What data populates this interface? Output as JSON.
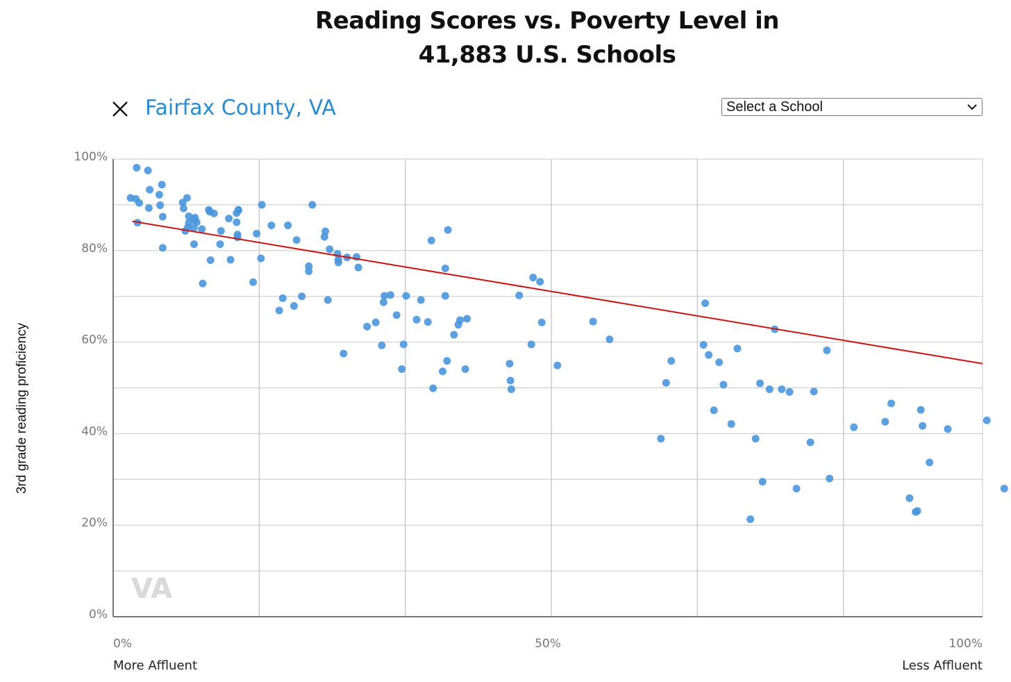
{
  "title": {
    "line1": "Reading Scores vs. Poverty Level in",
    "line2": "41,883 U.S. Schools"
  },
  "header": {
    "close_icon": "close-icon",
    "region_label": "Fairfax County, VA",
    "school_select": {
      "selected": "Select a School",
      "icon": "chevron-down-icon"
    }
  },
  "colors": {
    "points": "#4a96dc",
    "trend": "#cc1111",
    "region": "#2a8bd1",
    "grid": "#c8c8c8"
  },
  "chart_data": {
    "type": "scatter",
    "title": "Reading Scores vs. Poverty Level in 41,883 U.S. Schools",
    "xlabel": "",
    "ylabel": "3rd grade reading proficiency",
    "xlim": [
      0,
      100
    ],
    "ylim": [
      0,
      100
    ],
    "x_tick_labels": [
      {
        "value": 0,
        "label": "0%"
      },
      {
        "value": 50,
        "label": "50%"
      },
      {
        "value": 100,
        "label": "100%"
      }
    ],
    "y_tick_labels": [
      {
        "value": 0,
        "label": "0%"
      },
      {
        "value": 20,
        "label": "20%"
      },
      {
        "value": 40,
        "label": "40%"
      },
      {
        "value": 60,
        "label": "60%"
      },
      {
        "value": 80,
        "label": "80%"
      },
      {
        "value": 100,
        "label": "100%"
      }
    ],
    "x_end_labels": {
      "left": "More Affluent",
      "right": "Less Affluent"
    },
    "watermark": "VA",
    "grid": true,
    "trend_line": {
      "x": [
        2.2,
        100
      ],
      "y": [
        86.4,
        55.3
      ]
    },
    "points": [
      [
        2.7,
        98.1
      ],
      [
        4,
        97.5
      ],
      [
        2,
        91.5
      ],
      [
        2.6,
        91.3
      ],
      [
        3,
        90.4
      ],
      [
        4.2,
        93.3
      ],
      [
        4.1,
        89.3
      ],
      [
        5.3,
        92.2
      ],
      [
        5.6,
        94.4
      ],
      [
        5.4,
        89.9
      ],
      [
        5.7,
        87.4
      ],
      [
        2.8,
        86.1
      ],
      [
        5.7,
        80.6
      ],
      [
        8,
        90.5
      ],
      [
        8.1,
        89.2
      ],
      [
        8.5,
        91.5
      ],
      [
        8.7,
        87.5
      ],
      [
        8.3,
        84.3
      ],
      [
        8.6,
        85.1
      ],
      [
        8.7,
        86.1
      ],
      [
        9.3,
        86.7
      ],
      [
        9.4,
        87.2
      ],
      [
        9.6,
        86.2
      ],
      [
        9.3,
        85
      ],
      [
        10.2,
        84.7
      ],
      [
        9.3,
        81.4
      ],
      [
        11,
        88.9
      ],
      [
        11.1,
        88.5
      ],
      [
        11.6,
        88.1
      ],
      [
        11.2,
        77.9
      ],
      [
        10.3,
        72.8
      ],
      [
        12.4,
        84.3
      ],
      [
        12.3,
        81.4
      ],
      [
        13.3,
        87
      ],
      [
        13.5,
        78
      ],
      [
        14.2,
        88.2
      ],
      [
        14.4,
        88.8
      ],
      [
        14.4,
        88.9
      ],
      [
        14.2,
        86.2
      ],
      [
        14.3,
        83.5
      ],
      [
        14.3,
        82.9
      ],
      [
        16.1,
        73.1
      ],
      [
        16.5,
        83.7
      ],
      [
        17,
        78.3
      ],
      [
        17.1,
        90
      ],
      [
        18.2,
        85.5
      ],
      [
        19.1,
        66.9
      ],
      [
        19.5,
        69.6
      ],
      [
        20.1,
        85.5
      ],
      [
        20.8,
        67.9
      ],
      [
        21.1,
        82.3
      ],
      [
        21.7,
        70
      ],
      [
        22.5,
        76.6
      ],
      [
        22.5,
        75.5
      ],
      [
        22.9,
        90
      ],
      [
        24.3,
        83
      ],
      [
        24.4,
        84.2
      ],
      [
        24.7,
        69.2
      ],
      [
        24.9,
        80.3
      ],
      [
        25.8,
        79.3
      ],
      [
        25.9,
        78
      ],
      [
        25.9,
        77.4
      ],
      [
        26.5,
        57.5
      ],
      [
        26.9,
        78.5
      ],
      [
        28,
        78.6
      ],
      [
        28.2,
        76.3
      ],
      [
        29.2,
        63.4
      ],
      [
        30.2,
        64.3
      ],
      [
        30.9,
        59.3
      ],
      [
        31.1,
        68.7
      ],
      [
        31.2,
        70.1
      ],
      [
        31.9,
        70.3
      ],
      [
        32.6,
        65.9
      ],
      [
        33.2,
        54.1
      ],
      [
        33.4,
        59.5
      ],
      [
        33.7,
        70.1
      ],
      [
        34.9,
        64.9
      ],
      [
        35.4,
        69.2
      ],
      [
        36.2,
        64.4
      ],
      [
        36.6,
        82.2
      ],
      [
        36.8,
        49.9
      ],
      [
        37.9,
        53.6
      ],
      [
        38.2,
        70.1
      ],
      [
        38.2,
        76.1
      ],
      [
        38.4,
        55.9
      ],
      [
        38.5,
        84.5
      ],
      [
        39.2,
        61.6
      ],
      [
        39.7,
        63.8
      ],
      [
        39.9,
        64.8
      ],
      [
        40.5,
        54.1
      ],
      [
        40.7,
        65.1
      ],
      [
        45.6,
        55.3
      ],
      [
        45.7,
        51.6
      ],
      [
        45.8,
        49.7
      ],
      [
        46.7,
        70.2
      ],
      [
        48.1,
        59.5
      ],
      [
        48.3,
        74.1
      ],
      [
        49.1,
        73.2
      ],
      [
        49.3,
        64.3
      ],
      [
        51.1,
        54.9
      ],
      [
        55.2,
        64.5
      ],
      [
        57.1,
        60.6
      ],
      [
        63,
        38.9
      ],
      [
        63.6,
        51.1
      ],
      [
        64.2,
        55.9
      ],
      [
        67.9,
        59.4
      ],
      [
        68.1,
        68.5
      ],
      [
        68.5,
        57.2
      ],
      [
        69.1,
        45.1
      ],
      [
        69.7,
        55.6
      ],
      [
        70.2,
        50.7
      ],
      [
        71.1,
        42.1
      ],
      [
        71.8,
        58.6
      ],
      [
        73.3,
        21.3
      ],
      [
        73.9,
        38.9
      ],
      [
        74.4,
        51
      ],
      [
        74.7,
        29.5
      ],
      [
        75.5,
        49.7
      ],
      [
        76.1,
        62.8
      ],
      [
        76.9,
        49.7
      ],
      [
        77.8,
        49.1
      ],
      [
        78.6,
        28
      ],
      [
        80.2,
        38.1
      ],
      [
        80.6,
        49.2
      ],
      [
        82.1,
        58.2
      ],
      [
        82.4,
        30.2
      ],
      [
        85.2,
        41.4
      ],
      [
        88.8,
        42.6
      ],
      [
        89.5,
        46.6
      ],
      [
        91.6,
        25.9
      ],
      [
        92.3,
        22.9
      ],
      [
        92.5,
        23.1
      ],
      [
        92.9,
        45.2
      ],
      [
        93.1,
        41.7
      ],
      [
        93.9,
        33.7
      ],
      [
        96,
        41
      ],
      [
        100.5,
        42.9
      ],
      [
        102.5,
        28
      ]
    ]
  }
}
